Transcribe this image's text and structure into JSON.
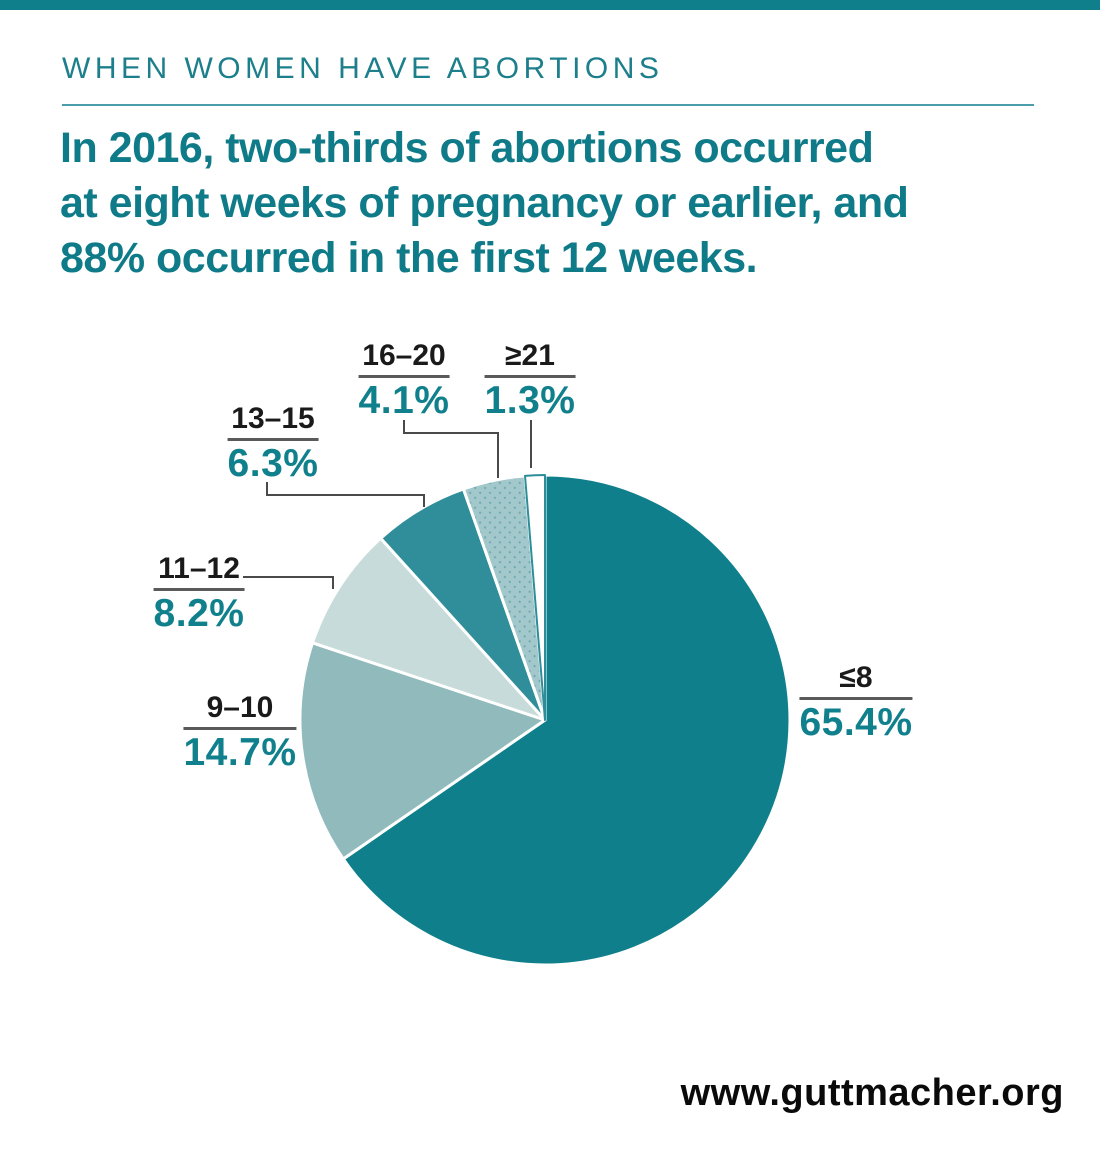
{
  "page": {
    "eyebrow": "WHEN WOMEN HAVE ABORTIONS",
    "headline": "In 2016, two-thirds of abortions occurred\nat eight weeks of pregnancy or earlier, and\n88% occurred in the first 12 weeks.",
    "footer_url": "www.guttmacher.org"
  },
  "colors": {
    "accent_teal": "#0E7F8B",
    "eyebrow_teal": "#1D7F8B",
    "headline_teal": "#0F7B89",
    "divider_teal": "#4C9DAB",
    "percent_teal": "#0F808C",
    "label_black": "#1A1A1A",
    "leader_gray": "#4A4A4A",
    "underline_gray": "#5A5A5B"
  },
  "chart_data": {
    "type": "pie",
    "units": "weeks of pregnancy at time of abortion, 2016",
    "direction": "clockwise",
    "start_angle_deg": 0,
    "legend_position": "outside-labels-with-leader-lines",
    "slices": [
      {
        "weeks": "≤8",
        "value": 65.4,
        "pct_label": "65.4%",
        "color": "#0E7F8B"
      },
      {
        "weeks": "9–10",
        "value": 14.7,
        "pct_label": "14.7%",
        "color": "#91BABC"
      },
      {
        "weeks": "11–12",
        "value": 8.2,
        "pct_label": "8.2%",
        "color": "#C8DBDB"
      },
      {
        "weeks": "13–15",
        "value": 6.3,
        "pct_label": "6.3%",
        "color": "#2F8E99"
      },
      {
        "weeks": "16–20",
        "value": 4.1,
        "pct_label": "4.1%",
        "color": "#A3C8CC",
        "fill_pattern": "dots",
        "dot_color": "#6FA9B1"
      },
      {
        "weeks": "≥21",
        "value": 1.3,
        "pct_label": "1.3%",
        "color": "#FFFFFF",
        "outline_color": "#2D8E9A"
      }
    ]
  }
}
